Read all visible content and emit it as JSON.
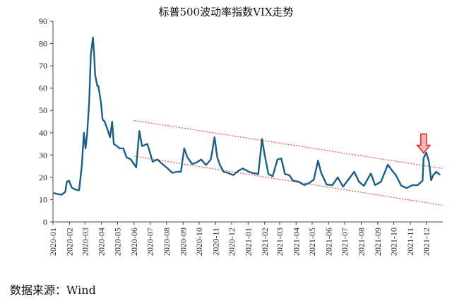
{
  "chart_data": {
    "type": "line",
    "title": "标普500波动率指数VIX走势",
    "source": "数据来源：Wind",
    "xlabel": "",
    "ylabel": "",
    "ylim": [
      0,
      90
    ],
    "y_ticks": [
      0,
      10,
      20,
      30,
      40,
      50,
      60,
      70,
      80,
      90
    ],
    "x_ticks": [
      "2020-01",
      "2020-02",
      "2020-03",
      "2020-04",
      "2020-05",
      "2020-06",
      "2020-07",
      "2020-08",
      "2020-09",
      "2020-10",
      "2020-11",
      "2020-12",
      "2021-01",
      "2021-02",
      "2021-03",
      "2021-04",
      "2021-05",
      "2021-06",
      "2021-07",
      "2021-08",
      "2021-09",
      "2021-10",
      "2021-11",
      "2021-12"
    ],
    "grid": false,
    "series": [
      {
        "color": "#1b5e86",
        "points": [
          [
            "2020-01-02",
            13.0
          ],
          [
            "2020-01-10",
            12.5
          ],
          [
            "2020-01-17",
            12.2
          ],
          [
            "2020-01-24",
            13.5
          ],
          [
            "2020-01-27",
            18.0
          ],
          [
            "2020-01-31",
            18.5
          ],
          [
            "2020-02-05",
            15.5
          ],
          [
            "2020-02-12",
            14.5
          ],
          [
            "2020-02-19",
            14.2
          ],
          [
            "2020-02-24",
            25.0
          ],
          [
            "2020-02-28",
            40.0
          ],
          [
            "2020-03-02",
            33.0
          ],
          [
            "2020-03-05",
            39.0
          ],
          [
            "2020-03-09",
            54.0
          ],
          [
            "2020-03-12",
            75.0
          ],
          [
            "2020-03-16",
            82.7
          ],
          [
            "2020-03-18",
            76.0
          ],
          [
            "2020-03-20",
            66.0
          ],
          [
            "2020-03-24",
            61.0
          ],
          [
            "2020-03-26",
            61.0
          ],
          [
            "2020-03-31",
            53.5
          ],
          [
            "2020-04-03",
            46.0
          ],
          [
            "2020-04-07",
            45.0
          ],
          [
            "2020-04-13",
            41.0
          ],
          [
            "2020-04-17",
            38.0
          ],
          [
            "2020-04-21",
            45.0
          ],
          [
            "2020-04-24",
            35.0
          ],
          [
            "2020-04-30",
            34.0
          ],
          [
            "2020-05-05",
            33.0
          ],
          [
            "2020-05-12",
            33.0
          ],
          [
            "2020-05-18",
            29.0
          ],
          [
            "2020-05-26",
            28.0
          ],
          [
            "2020-06-05",
            24.5
          ],
          [
            "2020-06-11",
            40.8
          ],
          [
            "2020-06-16",
            34.0
          ],
          [
            "2020-06-26",
            35.0
          ],
          [
            "2020-07-06",
            27.0
          ],
          [
            "2020-07-15",
            28.0
          ],
          [
            "2020-07-24",
            26.0
          ],
          [
            "2020-08-03",
            24.0
          ],
          [
            "2020-08-12",
            22.0
          ],
          [
            "2020-08-21",
            22.5
          ],
          [
            "2020-08-28",
            22.5
          ],
          [
            "2020-09-03",
            33.0
          ],
          [
            "2020-09-09",
            29.0
          ],
          [
            "2020-09-18",
            26.0
          ],
          [
            "2020-09-25",
            26.5
          ],
          [
            "2020-10-05",
            28.0
          ],
          [
            "2020-10-14",
            25.5
          ],
          [
            "2020-10-23",
            28.0
          ],
          [
            "2020-10-30",
            38.0
          ],
          [
            "2020-11-04",
            29.0
          ],
          [
            "2020-11-09",
            25.5
          ],
          [
            "2020-11-16",
            22.5
          ],
          [
            "2020-11-24",
            22.0
          ],
          [
            "2020-12-04",
            21.0
          ],
          [
            "2020-12-14",
            23.0
          ],
          [
            "2020-12-22",
            24.0
          ],
          [
            "2020-12-31",
            22.8
          ],
          [
            "2021-01-08",
            22.0
          ],
          [
            "2021-01-20",
            21.5
          ],
          [
            "2021-01-27",
            37.2
          ],
          [
            "2021-02-01",
            30.0
          ],
          [
            "2021-02-08",
            21.5
          ],
          [
            "2021-02-16",
            20.5
          ],
          [
            "2021-02-25",
            28.0
          ],
          [
            "2021-03-04",
            28.5
          ],
          [
            "2021-03-11",
            21.5
          ],
          [
            "2021-03-19",
            21.0
          ],
          [
            "2021-03-26",
            18.5
          ],
          [
            "2021-04-06",
            18.0
          ],
          [
            "2021-04-16",
            16.5
          ],
          [
            "2021-04-26",
            17.5
          ],
          [
            "2021-05-04",
            19.0
          ],
          [
            "2021-05-12",
            27.5
          ],
          [
            "2021-05-18",
            22.0
          ],
          [
            "2021-05-28",
            16.8
          ],
          [
            "2021-06-08",
            16.5
          ],
          [
            "2021-06-18",
            20.0
          ],
          [
            "2021-06-28",
            15.8
          ],
          [
            "2021-07-08",
            19.0
          ],
          [
            "2021-07-19",
            22.5
          ],
          [
            "2021-07-28",
            18.0
          ],
          [
            "2021-08-06",
            16.2
          ],
          [
            "2021-08-19",
            21.7
          ],
          [
            "2021-08-27",
            16.5
          ],
          [
            "2021-09-07",
            18.0
          ],
          [
            "2021-09-20",
            25.7
          ],
          [
            "2021-09-28",
            23.0
          ],
          [
            "2021-10-05",
            21.0
          ],
          [
            "2021-10-15",
            16.3
          ],
          [
            "2021-10-25",
            15.2
          ],
          [
            "2021-11-05",
            16.5
          ],
          [
            "2021-11-15",
            16.5
          ],
          [
            "2021-11-24",
            18.5
          ],
          [
            "2021-11-26",
            28.6
          ],
          [
            "2021-12-01",
            31.1
          ],
          [
            "2021-12-06",
            27.0
          ],
          [
            "2021-12-10",
            18.7
          ],
          [
            "2021-12-14",
            21.0
          ],
          [
            "2021-12-20",
            22.5
          ],
          [
            "2021-12-27",
            21.0
          ]
        ]
      }
    ],
    "trend_lines": {
      "color": "#e84a4a",
      "style": "dotted",
      "upper": [
        [
          "2020-06-01",
          45.5
        ],
        [
          "2021-12-31",
          24.0
        ]
      ],
      "lower": [
        [
          "2020-06-01",
          29.5
        ],
        [
          "2021-12-31",
          7.5
        ]
      ]
    },
    "annotation": {
      "type": "down-arrow",
      "at": [
        "2021-11-26",
        35.0
      ],
      "fill": "#f4b6b6",
      "stroke": "#e02020"
    }
  }
}
